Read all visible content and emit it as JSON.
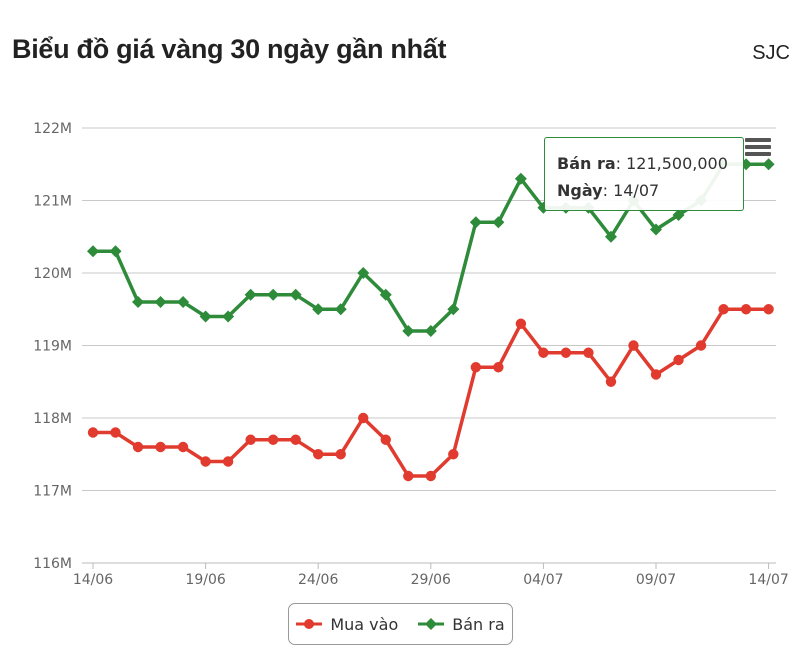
{
  "header": {
    "title": "Biểu đồ giá vàng 30 ngày gần nhất",
    "brand": "SJC"
  },
  "tooltip": {
    "series_label": "Bán ra",
    "value": "121,500,000",
    "date_label": "Ngày",
    "date": "14/07"
  },
  "menu": {
    "icon": "hamburger-menu-icon"
  },
  "chart_data": {
    "type": "line",
    "x": [
      "14/06",
      "15/06",
      "16/06",
      "17/06",
      "18/06",
      "19/06",
      "20/06",
      "21/06",
      "22/06",
      "23/06",
      "24/06",
      "25/06",
      "26/06",
      "27/06",
      "28/06",
      "29/06",
      "30/06",
      "01/07",
      "02/07",
      "03/07",
      "04/07",
      "05/07",
      "06/07",
      "07/07",
      "08/07",
      "09/07",
      "10/07",
      "11/07",
      "12/07",
      "13/07",
      "14/07"
    ],
    "x_tick_labels": [
      "14/06",
      "19/06",
      "24/06",
      "29/06",
      "04/07",
      "09/07",
      "14/07"
    ],
    "y_tick_labels": [
      "116M",
      "117M",
      "118M",
      "119M",
      "120M",
      "121M",
      "122M"
    ],
    "ylim": [
      116000000,
      122000000
    ],
    "grid": true,
    "legend": "bottom",
    "series": [
      {
        "name": "Mua vào",
        "color": "#e03b2e",
        "marker": "circle",
        "values": [
          117800000,
          117800000,
          117600000,
          117600000,
          117600000,
          117400000,
          117400000,
          117700000,
          117700000,
          117700000,
          117500000,
          117500000,
          118000000,
          117700000,
          117200000,
          117200000,
          117500000,
          118700000,
          118700000,
          119300000,
          118900000,
          118900000,
          118900000,
          118500000,
          119000000,
          118600000,
          118800000,
          119000000,
          119500000,
          119500000,
          119500000
        ]
      },
      {
        "name": "Bán ra",
        "color": "#2e8b3a",
        "marker": "diamond",
        "values": [
          120300000,
          120300000,
          119600000,
          119600000,
          119600000,
          119400000,
          119400000,
          119700000,
          119700000,
          119700000,
          119500000,
          119500000,
          120000000,
          119700000,
          119200000,
          119200000,
          119500000,
          120700000,
          120700000,
          121300000,
          120900000,
          120900000,
          120900000,
          120500000,
          121000000,
          120600000,
          120800000,
          121000000,
          121500000,
          121500000,
          121500000
        ]
      }
    ]
  }
}
